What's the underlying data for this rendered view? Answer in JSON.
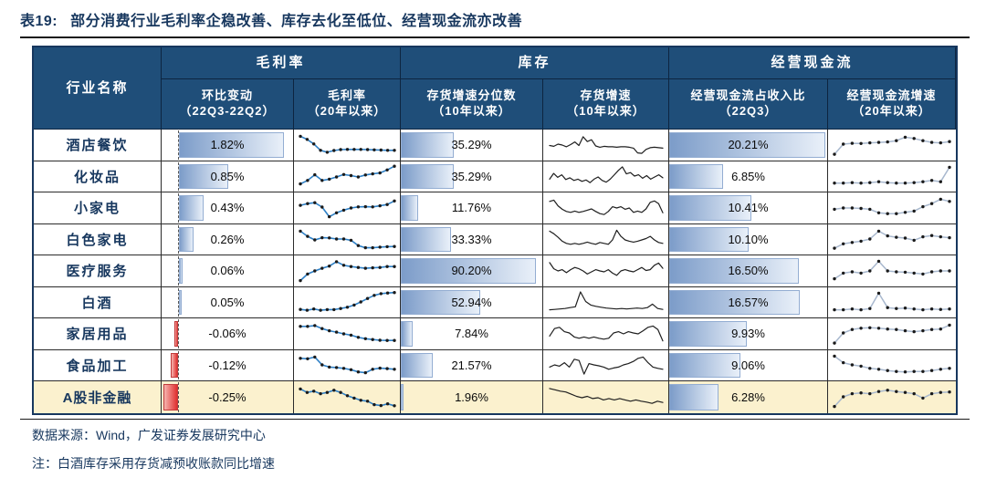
{
  "title": {
    "tag": "表19:",
    "text": "部分消费行业毛利率企稳改善、库存去化至低位、经营现金流亦改善"
  },
  "header": {
    "industry": "行业名称",
    "groups": [
      {
        "label": "毛利率",
        "children": [
          {
            "line1": "环比变动",
            "line2": "（22Q3-22Q2）"
          },
          {
            "line1": "毛利率",
            "line2": "（20年以来）"
          }
        ]
      },
      {
        "label": "库存",
        "children": [
          {
            "line1": "存货增速分位数",
            "line2": "（10年以来）"
          },
          {
            "line1": "存货增速",
            "line2": "（10年以来）"
          }
        ]
      },
      {
        "label": "经营现金流",
        "children": [
          {
            "line1": "经营现金流占收入比",
            "line2": "（22Q3）"
          },
          {
            "line1": "经营现金流增速",
            "line2": "（20年以来）"
          }
        ]
      }
    ]
  },
  "footer": {
    "source": "数据来源：Wind，广发证券发展研究中心",
    "note": "注：白酒库存采用存货减预收账款同比增速"
  },
  "colors": {
    "header_bg": "#1F4E79",
    "header_text": "#FFFFFF",
    "title_text": "#17375E",
    "outer_border": "#17375E",
    "highlight_bg": "#FBF1CE",
    "bar_blue_start": "#7C9CC9",
    "bar_blue_end": "#E9F0F9",
    "bar_blue_border": "#93ADD2",
    "bar_red_light": "#F6B3AE",
    "bar_red_dark": "#E02F2F",
    "bar_red_border": "#C23A3A",
    "margin_line": "#2E80C6",
    "inventory_line": "#1f1f1f",
    "ocf_line": "#A8B8CE",
    "marker": "#1a1a1a"
  },
  "chart_data": {
    "type": "table",
    "title": "表19: 部分消费行业毛利率企稳改善、库存去化至低位、经营现金流亦改善",
    "column_groups": [
      "毛利率",
      "库存",
      "经营现金流"
    ],
    "columns": [
      "行业名称",
      "环比变动（22Q3-22Q2）",
      "毛利率（20年以来）",
      "存货增速分位数（10年以来）",
      "存货增速（10年以来）",
      "经营现金流占收入比（22Q3）",
      "经营现金流增速（20年以来）"
    ],
    "rows": [
      {
        "name": "酒店餐饮",
        "qoq": 1.82,
        "qoq_label": "1.82%",
        "margin_trend": [
          90,
          76,
          55,
          26,
          17,
          25,
          29,
          30,
          30,
          30,
          29,
          28,
          27,
          26,
          26
        ],
        "inv_pctile": 35.29,
        "inv_pctile_label": "35.29%",
        "inv_trend": [
          48,
          44,
          54,
          50,
          42,
          52,
          64,
          48,
          88,
          66,
          74,
          46,
          40,
          44,
          42,
          42,
          40,
          42,
          42,
          40,
          36,
          14,
          12,
          30,
          38,
          40,
          38,
          36
        ],
        "ocf_ratio": 20.21,
        "ocf_ratio_label": "20.21%",
        "ocf_trend": [
          8,
          54,
          58,
          57,
          60,
          62,
          64,
          70,
          86,
          80,
          70,
          62,
          60,
          66
        ],
        "highlight": false
      },
      {
        "name": "化妆品",
        "qoq": 0.85,
        "qoq_label": "0.85%",
        "margin_trend": [
          14,
          30,
          56,
          30,
          36,
          46,
          57,
          52,
          46,
          55,
          60,
          64,
          78,
          95
        ],
        "inv_pctile": 35.29,
        "inv_pctile_label": "35.29%",
        "inv_trend": [
          36,
          62,
          44,
          56,
          34,
          42,
          30,
          36,
          26,
          32,
          20,
          36,
          46,
          30,
          22,
          36,
          56,
          76,
          92,
          60,
          66,
          50,
          56,
          40,
          52,
          36,
          46,
          56,
          42
        ],
        "ocf_ratio": 6.85,
        "ocf_ratio_label": "6.85%",
        "ocf_trend": [
          18,
          18,
          20,
          18,
          20,
          24,
          20,
          18,
          18,
          20,
          24,
          30,
          24,
          90
        ],
        "highlight": false
      },
      {
        "name": "小家电",
        "qoq": 0.43,
        "qoq_label": "0.43%",
        "margin_trend": [
          62,
          70,
          74,
          54,
          10,
          28,
          40,
          50,
          55,
          56,
          55,
          60,
          66,
          82
        ],
        "inv_pctile": 11.76,
        "inv_pctile_label": "11.76%",
        "inv_trend": [
          80,
          86,
          60,
          44,
          34,
          30,
          36,
          30,
          34,
          40,
          46,
          34,
          24,
          20,
          34,
          56,
          50,
          56,
          44,
          50,
          30,
          36,
          30,
          46,
          76,
          82,
          70,
          28
        ],
        "ocf_ratio": 10.41,
        "ocf_ratio_label": "10.41%",
        "ocf_trend": [
          44,
          50,
          50,
          48,
          44,
          28,
          24,
          24,
          30,
          36,
          56,
          70,
          90,
          80
        ],
        "highlight": false
      },
      {
        "name": "白色家电",
        "qoq": 0.26,
        "qoq_label": "0.26%",
        "margin_trend": [
          86,
          62,
          46,
          56,
          55,
          50,
          50,
          44,
          20,
          10,
          10,
          13,
          15,
          16
        ],
        "inv_pctile": 33.33,
        "inv_pctile_label": "33.33%",
        "inv_trend": [
          86,
          74,
          58,
          40,
          30,
          26,
          30,
          26,
          30,
          36,
          30,
          26,
          34,
          30,
          26,
          46,
          90,
          62,
          46,
          40,
          36,
          40,
          46,
          52,
          62,
          46,
          34,
          30
        ],
        "ocf_ratio": 10.1,
        "ocf_ratio_label": "10.10%",
        "ocf_trend": [
          8,
          28,
          34,
          40,
          50,
          86,
          64,
          58,
          54,
          44,
          60,
          66,
          60,
          56
        ],
        "highlight": false
      },
      {
        "name": "医疗服务",
        "qoq": 0.06,
        "qoq_label": "0.06%",
        "margin_trend": [
          6,
          36,
          50,
          62,
          72,
          92,
          76,
          70,
          66,
          62,
          64,
          66,
          70,
          70
        ],
        "inv_pctile": 90.2,
        "inv_pctile_label": "90.20%",
        "inv_trend": [
          88,
          60,
          50,
          56,
          42,
          56,
          66,
          60,
          50,
          36,
          46,
          56,
          50,
          46,
          56,
          40,
          30,
          50,
          56,
          50,
          46,
          56,
          66,
          52,
          56,
          76,
          86,
          62
        ],
        "ocf_ratio": 16.5,
        "ocf_ratio_label": "16.50%",
        "ocf_trend": [
          14,
          40,
          46,
          40,
          50,
          94,
          50,
          46,
          44,
          40,
          36,
          46,
          50,
          50
        ],
        "highlight": false
      },
      {
        "name": "白酒",
        "qoq": 0.05,
        "qoq_label": "0.05%",
        "margin_trend": [
          16,
          12,
          18,
          12,
          15,
          15,
          20,
          26,
          36,
          50,
          66,
          80,
          88,
          91,
          93
        ],
        "inv_pctile": 52.94,
        "inv_pctile_label": "52.94%",
        "inv_trend": [
          14,
          16,
          18,
          20,
          24,
          28,
          96,
          52,
          36,
          30,
          26,
          22,
          20,
          18,
          20,
          18,
          20,
          22,
          20,
          24,
          40,
          20,
          16
        ],
        "ocf_ratio": 16.57,
        "ocf_ratio_label": "16.57%",
        "ocf_trend": [
          14,
          14,
          18,
          14,
          20,
          90,
          24,
          20,
          22,
          18,
          14,
          18,
          16,
          18
        ],
        "highlight": false
      },
      {
        "name": "家居用品",
        "qoq": -0.06,
        "qoq_label": "-0.06%",
        "margin_trend": [
          84,
          84,
          88,
          74,
          64,
          58,
          50,
          44,
          34,
          28,
          24,
          21,
          20,
          20
        ],
        "inv_pctile": 7.84,
        "inv_pctile_label": "7.84%",
        "inv_trend": [
          40,
          74,
          80,
          60,
          54,
          36,
          30,
          36,
          30,
          36,
          30,
          26,
          30,
          54,
          60,
          50,
          60,
          54,
          50,
          64,
          80,
          86,
          70,
          18
        ],
        "ocf_ratio": 9.93,
        "ocf_ratio_label": "9.93%",
        "ocf_trend": [
          8,
          54,
          70,
          76,
          78,
          76,
          72,
          70,
          64,
          60,
          64,
          70,
          72,
          90
        ],
        "highlight": false
      },
      {
        "name": "食品加工",
        "qoq": -0.12,
        "qoq_label": "-0.12%",
        "margin_trend": [
          80,
          78,
          86,
          50,
          40,
          38,
          34,
          28,
          18,
          14,
          30,
          35,
          33,
          30
        ],
        "inv_pctile": 21.57,
        "inv_pctile_label": "21.57%",
        "inv_trend": [
          40,
          50,
          44,
          60,
          40,
          76,
          70,
          8,
          56,
          50,
          46,
          40,
          30,
          36,
          40,
          50,
          56,
          66,
          80,
          86,
          60,
          40,
          34,
          30
        ],
        "ocf_ratio": 9.06,
        "ocf_ratio_label": "9.06%",
        "ocf_trend": [
          90,
          60,
          50,
          44,
          34,
          30,
          24,
          20,
          18,
          20,
          20,
          24,
          30,
          34
        ],
        "highlight": false
      },
      {
        "name": "A股非金融",
        "qoq": -0.25,
        "qoq_label": "-0.25%",
        "margin_trend": [
          86,
          70,
          76,
          64,
          70,
          80,
          70,
          55,
          44,
          34,
          30,
          14,
          10,
          18,
          9
        ],
        "inv_pctile": 1.96,
        "inv_pctile_label": "1.96%",
        "inv_trend": [
          88,
          82,
          76,
          72,
          62,
          52,
          46,
          52,
          42,
          46,
          36,
          42,
          36,
          42,
          36,
          30,
          36,
          30,
          26,
          20,
          30,
          24
        ],
        "ocf_ratio": 6.28,
        "ocf_ratio_label": "6.28%",
        "ocf_trend": [
          6,
          50,
          64,
          68,
          64,
          74,
          80,
          74,
          70,
          64,
          44,
          64,
          70,
          72
        ],
        "highlight": true
      }
    ]
  }
}
